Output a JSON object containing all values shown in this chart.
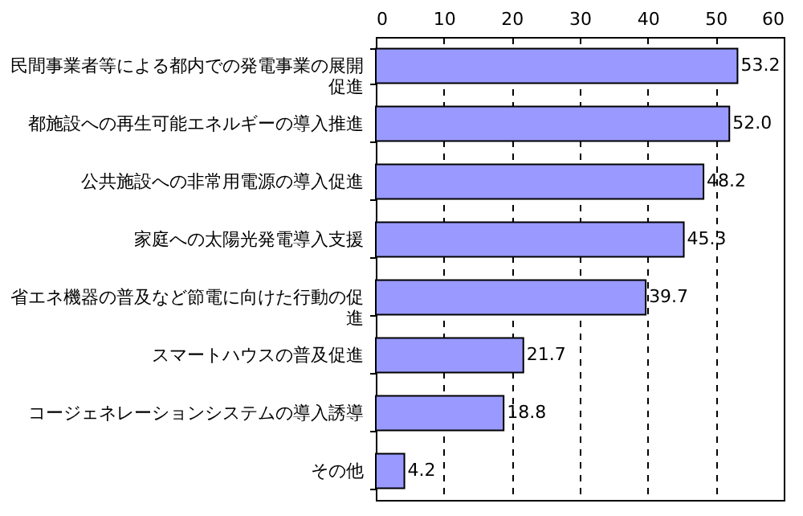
{
  "chart_data": {
    "type": "bar",
    "orientation": "horizontal",
    "categories": [
      "民間事業者等による都内での発電事業の展開促進",
      "都施設への再生可能エネルギーの導入推進",
      "公共施設への非常用電源の導入促進",
      "家庭への太陽光発電導入支援",
      "省エネ機器の普及など節電に向けた行動の促進",
      "スマートハウスの普及促進",
      "コージェネレーションシステムの導入誘導",
      "その他"
    ],
    "values": [
      53.2,
      52.0,
      48.2,
      45.3,
      39.7,
      21.7,
      18.8,
      4.2
    ],
    "value_labels": [
      "53.2",
      "52.0",
      "48.2",
      "45.3",
      "39.7",
      "21.7",
      "18.8",
      "4.2"
    ],
    "color": "#9999ff",
    "xlim": [
      0,
      60
    ],
    "xticks": [
      0,
      10,
      20,
      30,
      40,
      50,
      60
    ],
    "grid": "x"
  }
}
